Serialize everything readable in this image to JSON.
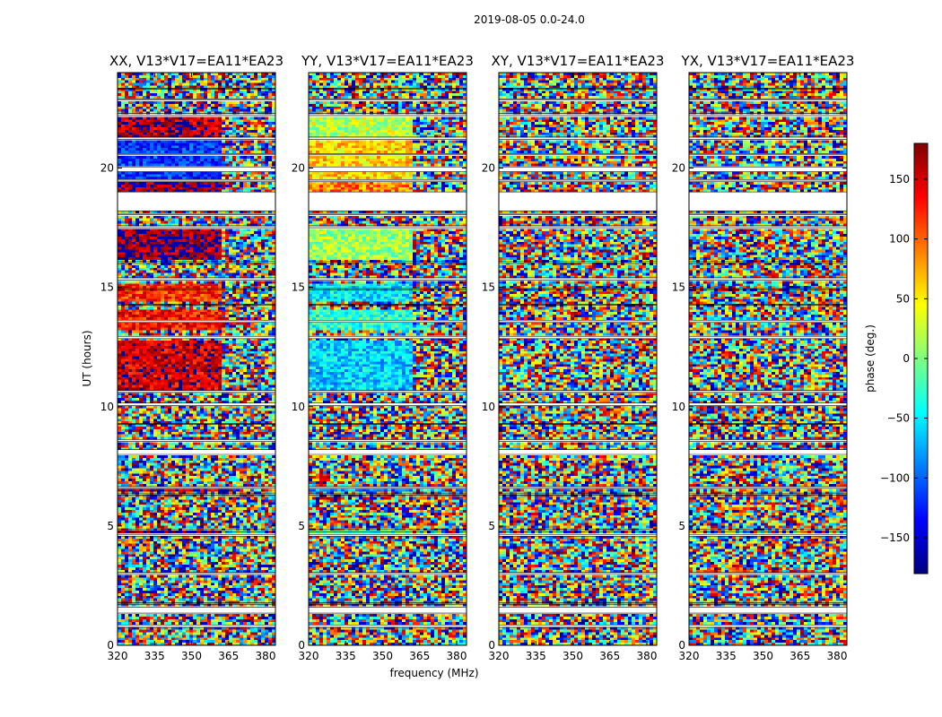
{
  "suptitle": "2019-08-05 0.0-24.0",
  "chart_data": {
    "type": "heatmap",
    "panels": [
      {
        "title": "XX, V13*V17=EA11*EA23"
      },
      {
        "title": "YY, V13*V17=EA11*EA23"
      },
      {
        "title": "XY, V13*V17=EA11*EA23"
      },
      {
        "title": "YX, V13*V17=EA11*EA23"
      }
    ],
    "xlabel": "frequency (MHz)",
    "ylabel": "UT (hours)",
    "xlim": [
      320,
      384
    ],
    "ylim": [
      0,
      24
    ],
    "xticks": [
      "320",
      "335",
      "350",
      "365",
      "380"
    ],
    "yticks": [
      "0",
      "5",
      "10",
      "15",
      "20"
    ],
    "colormap": "jet",
    "colorbar": {
      "label": "phase (deg.)",
      "range": [
        -180,
        180
      ],
      "ticks": [
        "−150",
        "−100",
        "−50",
        "0",
        "50",
        "100",
        "150"
      ]
    },
    "flagged_gaps_hours": [
      [
        0.75,
        0.85
      ],
      [
        1.35,
        1.6
      ],
      [
        1.72,
        1.78
      ],
      [
        3.0,
        3.05
      ],
      [
        4.55,
        4.65
      ],
      [
        4.75,
        4.85
      ],
      [
        6.3,
        6.38
      ],
      [
        6.58,
        6.65
      ],
      [
        8.0,
        8.2
      ],
      [
        8.55,
        8.62
      ],
      [
        9.25,
        9.3
      ],
      [
        10.05,
        10.15
      ],
      [
        10.6,
        10.68
      ],
      [
        12.85,
        12.95
      ],
      [
        13.55,
        13.62
      ],
      [
        14.25,
        14.3
      ],
      [
        14.9,
        14.95
      ],
      [
        15.3,
        15.4
      ],
      [
        16.0,
        16.08
      ],
      [
        17.5,
        17.58
      ],
      [
        18.05,
        18.1
      ],
      [
        18.2,
        19.0
      ],
      [
        19.45,
        19.5
      ],
      [
        19.85,
        20.05
      ],
      [
        20.55,
        20.6
      ],
      [
        21.2,
        21.3
      ],
      [
        22.2,
        22.3
      ],
      [
        22.85,
        22.9
      ],
      [
        23.3,
        23.35
      ]
    ],
    "coherent_phase_bands": {
      "XX": [
        [
          10.7,
          12.8,
          150
        ],
        [
          13.2,
          14.1,
          130
        ],
        [
          14.4,
          15.2,
          120
        ],
        [
          16.1,
          17.5,
          170
        ],
        [
          19.0,
          19.4,
          175
        ],
        [
          19.5,
          21.2,
          -120
        ],
        [
          21.3,
          22.2,
          160
        ],
        [
          6.4,
          6.6,
          165
        ],
        [
          4.65,
          4.75,
          175
        ]
      ],
      "YY": [
        [
          10.7,
          12.8,
          -60
        ],
        [
          13.2,
          14.1,
          -30
        ],
        [
          14.4,
          15.2,
          -50
        ],
        [
          16.1,
          17.5,
          10
        ],
        [
          19.0,
          19.4,
          90
        ],
        [
          19.5,
          21.2,
          60
        ],
        [
          21.3,
          22.2,
          20
        ],
        [
          6.4,
          6.6,
          -90
        ],
        [
          4.65,
          4.75,
          -20
        ]
      ]
    }
  }
}
